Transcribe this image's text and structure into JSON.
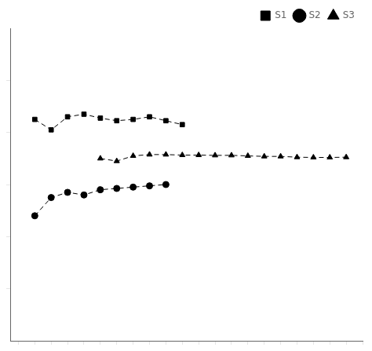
{
  "chart_data": {
    "type": "line",
    "series": [
      {
        "name": "S1",
        "color": "#000000",
        "marker": "square",
        "line_style": "dashed",
        "x": [
          1,
          2,
          3,
          4,
          5,
          6,
          7,
          8,
          9,
          10
        ],
        "values": [
          8.5,
          8.1,
          8.6,
          8.7,
          8.55,
          8.45,
          8.5,
          8.6,
          8.45,
          8.3
        ]
      },
      {
        "name": "S2",
        "color": "#000000",
        "marker": "circle",
        "line_style": "dashed",
        "x": [
          1,
          2,
          3,
          4,
          5,
          6,
          7,
          8,
          9
        ],
        "values": [
          4.8,
          5.5,
          5.7,
          5.6,
          5.8,
          5.85,
          5.9,
          5.95,
          6.0
        ]
      },
      {
        "name": "S3",
        "color": "#000000",
        "marker": "triangle",
        "line_style": "dashed",
        "x": [
          5,
          6,
          7,
          8,
          9,
          10,
          11,
          12,
          13,
          14,
          15,
          16,
          17,
          18,
          19,
          20
        ],
        "values": [
          7.0,
          6.9,
          7.1,
          7.15,
          7.15,
          7.13,
          7.13,
          7.12,
          7.12,
          7.1,
          7.08,
          7.08,
          7.05,
          7.04,
          7.04,
          7.05
        ]
      }
    ],
    "xlim": [
      -0.5,
      21
    ],
    "ylim": [
      0,
      12
    ],
    "xticks": [
      0,
      1,
      2,
      3,
      4,
      5,
      6,
      7,
      8,
      9,
      10,
      11,
      12,
      13,
      14,
      15,
      16,
      17,
      18,
      19,
      20,
      21
    ],
    "yticks": [
      2,
      4,
      6,
      8,
      10
    ],
    "tick_labels": false,
    "grid": false,
    "legend": "upper right"
  }
}
